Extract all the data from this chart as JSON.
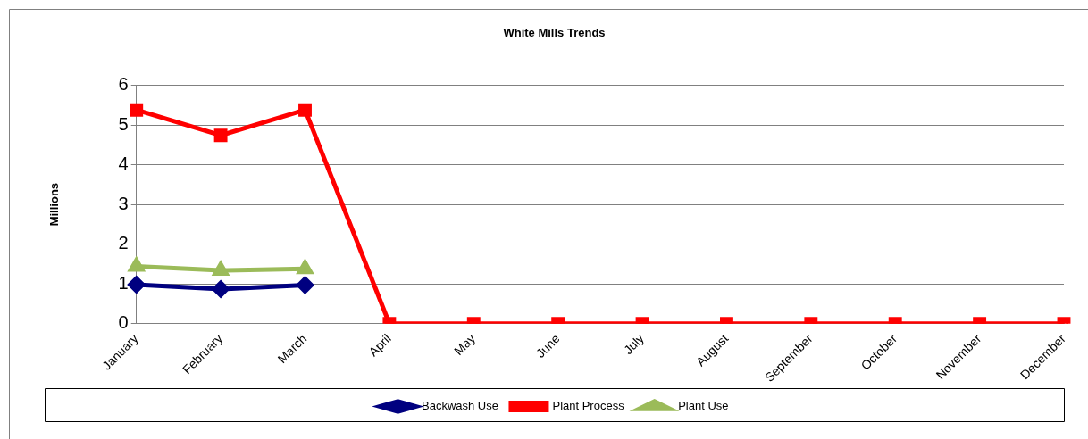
{
  "chart_data": {
    "type": "line",
    "title": "White Mills Trends",
    "ylabel": "Millions",
    "categories": [
      "January",
      "February",
      "March",
      "April",
      "May",
      "June",
      "July",
      "August",
      "September",
      "October",
      "November",
      "December"
    ],
    "series": [
      {
        "name": "Backwash Use",
        "color": "#000080",
        "marker": "diamond",
        "values": [
          0.98,
          0.87,
          0.97,
          null,
          null,
          null,
          null,
          null,
          null,
          null,
          null,
          null
        ]
      },
      {
        "name": "Plant Process",
        "color": "#ff0000",
        "marker": "square",
        "values": [
          5.38,
          4.74,
          5.38,
          0,
          0,
          0,
          0,
          0,
          0,
          0,
          0,
          0
        ]
      },
      {
        "name": "Plant Use",
        "color": "#9bbb59",
        "marker": "triangle",
        "values": [
          1.44,
          1.34,
          1.38,
          null,
          null,
          null,
          null,
          null,
          null,
          null,
          null,
          null
        ]
      }
    ],
    "ylim": [
      0,
      6
    ],
    "yticks": [
      0,
      1,
      2,
      3,
      4,
      5,
      6
    ],
    "grid": "y",
    "legend": "bottom",
    "line_style": "solid"
  }
}
